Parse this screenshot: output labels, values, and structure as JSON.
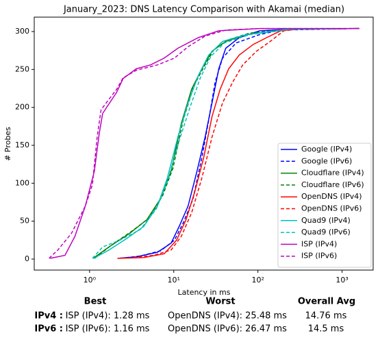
{
  "chart_data": {
    "type": "line",
    "title": "January_2023: DNS Latency Comparison with Akamai (median)",
    "xlabel": "Latency in ms",
    "ylabel": "# Probes",
    "xscale": "log",
    "xlim": [
      0.22,
      2340
    ],
    "ylim": [
      -14.5,
      319
    ],
    "xticks": [
      {
        "value": 1,
        "label": "10⁰"
      },
      {
        "value": 10,
        "label": "10¹"
      },
      {
        "value": 100,
        "label": "10²"
      },
      {
        "value": 1000,
        "label": "10³"
      }
    ],
    "yticks": [
      0,
      50,
      100,
      150,
      200,
      250,
      300
    ],
    "legend": "lower right",
    "series": [
      {
        "name": "Google (IPv4)",
        "color": "#0000ff",
        "linestyle": "solid",
        "x": [
          2.15,
          3.6,
          6.4,
          9.3,
          11.6,
          14.8,
          18.9,
          23.6,
          28.5,
          34.3,
          41.5,
          60,
          105,
          224,
          1600
        ],
        "values": [
          1,
          3,
          9,
          21,
          43,
          70,
          116,
          161,
          206,
          251,
          278,
          292,
          301,
          303,
          304
        ]
      },
      {
        "name": "Google (IPv6)",
        "color": "#0000ff",
        "linestyle": "dashed",
        "x": [
          2.3,
          4,
          7,
          10.2,
          13,
          16.9,
          21.6,
          26,
          31,
          38,
          55,
          105,
          186,
          1600
        ],
        "values": [
          1,
          4,
          11,
          25,
          48,
          79,
          134,
          183,
          233,
          265,
          285,
          296,
          302,
          304
        ]
      },
      {
        "name": "Cloudflare (IPv4)",
        "color": "#008000",
        "linestyle": "solid",
        "x": [
          1.1,
          1.7,
          3,
          4.8,
          7,
          9.3,
          12.3,
          16.3,
          21.6,
          28.5,
          41.5,
          73,
          224,
          1600
        ],
        "values": [
          1,
          16,
          34,
          52,
          80,
          116,
          179,
          224,
          251,
          274,
          287,
          296,
          303,
          304
        ]
      },
      {
        "name": "Cloudflare (IPv6)",
        "color": "#008000",
        "linestyle": "dashed",
        "x": [
          1.15,
          1.8,
          3.1,
          5.1,
          7.4,
          9.8,
          13,
          17.3,
          22.7,
          30,
          44,
          80,
          240,
          1600
        ],
        "values": [
          1,
          18,
          36,
          54,
          84,
          120,
          184,
          228,
          253,
          276,
          289,
          298,
          303,
          304
        ]
      },
      {
        "name": "OpenDNS (IPv4)",
        "color": "#ff0000",
        "linestyle": "solid",
        "x": [
          2.15,
          4.4,
          7.7,
          10.8,
          14,
          17.8,
          22.7,
          28.5,
          35.6,
          45,
          60,
          88,
          127,
          186,
          270,
          1600
        ],
        "values": [
          1,
          2,
          7,
          25,
          52,
          89,
          134,
          188,
          224,
          251,
          269,
          283,
          292,
          301,
          303,
          304
        ]
      },
      {
        "name": "OpenDNS (IPv6)",
        "color": "#ff0000",
        "linestyle": "dashed",
        "x": [
          3.3,
          5.8,
          9.3,
          12.3,
          16.3,
          21.6,
          28.5,
          38,
          50,
          66,
          96,
          140,
          203,
          295,
          1600
        ],
        "values": [
          2,
          5,
          12,
          30,
          61,
          107,
          161,
          206,
          233,
          256,
          274,
          287,
          301,
          303,
          304
        ]
      },
      {
        "name": "Quad9 (IPv4)",
        "color": "#00bfbf",
        "linestyle": "solid",
        "x": [
          1.12,
          1.7,
          2.75,
          4.4,
          6.4,
          8.4,
          11.2,
          14.8,
          19.6,
          26,
          38,
          73,
          224,
          1600
        ],
        "values": [
          1,
          12,
          27,
          43,
          70,
          107,
          161,
          206,
          242,
          269,
          287,
          296,
          303,
          304
        ]
      },
      {
        "name": "Quad9 (IPv6)",
        "color": "#00bfbf",
        "linestyle": "dashed",
        "x": [
          1.08,
          1.43,
          2.3,
          4,
          6.2,
          8.4,
          11.6,
          15.7,
          20.7,
          27.5,
          40,
          80,
          240,
          1600
        ],
        "values": [
          1,
          16,
          25,
          39,
          66,
          102,
          156,
          201,
          239,
          267,
          285,
          296,
          303,
          304
        ]
      },
      {
        "name": "ISP (IPv4)",
        "color": "#bf00bf",
        "linestyle": "solid",
        "x": [
          0.34,
          0.51,
          0.67,
          0.89,
          1.14,
          1.3,
          1.43,
          2.1,
          2.5,
          3.6,
          5.3,
          7.7,
          11.2,
          19.6,
          34.3,
          105,
          1600
        ],
        "values": [
          1,
          5,
          30,
          70,
          116,
          165,
          192,
          220,
          238,
          251,
          256,
          265,
          278,
          292,
          301,
          304,
          304
        ]
      },
      {
        "name": "ISP (IPv6)",
        "color": "#bf00bf",
        "linestyle": "dashed",
        "x": [
          0.33,
          0.42,
          0.61,
          0.89,
          1.08,
          1.23,
          1.37,
          2.1,
          2.5,
          3.6,
          6.4,
          10.2,
          14.8,
          23.6,
          41.5,
          105,
          1600
        ],
        "values": [
          1,
          12,
          34,
          70,
          98,
          161,
          197,
          224,
          239,
          249,
          256,
          265,
          280,
          294,
          302,
          304,
          304
        ]
      }
    ]
  },
  "table": {
    "headers": [
      "Best",
      "Worst",
      "Overall Avg"
    ],
    "rows": [
      [
        "IPv4 :",
        "ISP (IPv4): 1.28 ms",
        "OpenDNS (IPv4): 25.48 ms",
        "14.76 ms"
      ],
      [
        "IPv6 :",
        "ISP (IPv6): 1.16 ms",
        "OpenDNS (IPv6): 26.47 ms",
        "14.5 ms"
      ]
    ]
  }
}
